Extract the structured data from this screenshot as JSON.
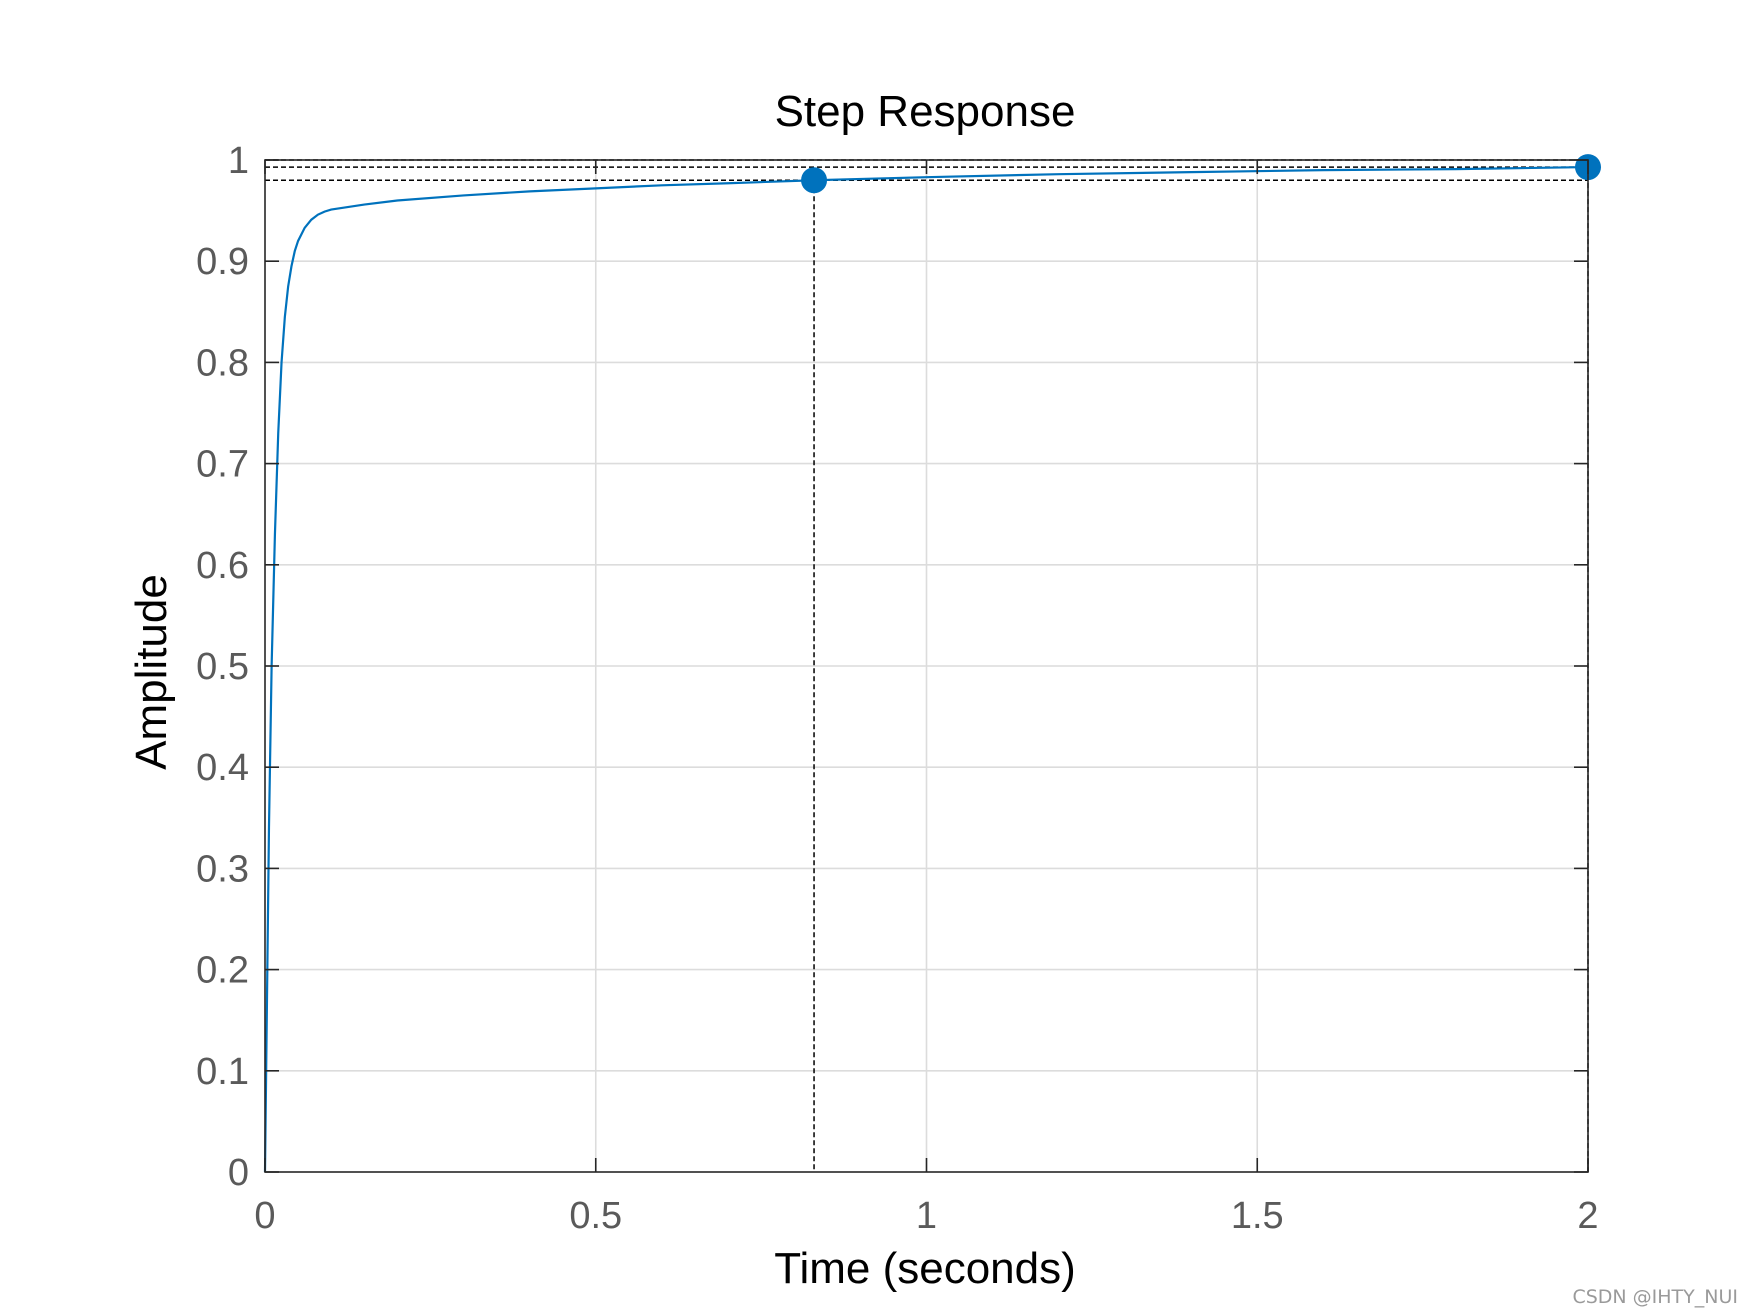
{
  "chart_data": {
    "type": "line",
    "title": "Step Response",
    "xlabel": "Time (seconds)",
    "ylabel": "Amplitude",
    "xlim": [
      0,
      2
    ],
    "ylim": [
      0,
      1
    ],
    "x_ticks": [
      0,
      0.5,
      1,
      1.5,
      2
    ],
    "x_tick_labels": [
      "0",
      "0.5",
      "1",
      "1.5",
      "2"
    ],
    "y_ticks": [
      0,
      0.1,
      0.2,
      0.3,
      0.4,
      0.5,
      0.6,
      0.7,
      0.8,
      0.9,
      1
    ],
    "y_tick_labels": [
      "0",
      "0.1",
      "0.2",
      "0.3",
      "0.4",
      "0.5",
      "0.6",
      "0.7",
      "0.8",
      "0.9",
      "1"
    ],
    "grid": true,
    "line_color": "#0072BD",
    "series": [
      {
        "x": [
          0,
          0.003,
          0.006,
          0.01,
          0.015,
          0.02,
          0.025,
          0.03,
          0.035,
          0.04,
          0.045,
          0.05,
          0.06,
          0.07,
          0.08,
          0.09,
          0.1,
          0.12,
          0.15,
          0.2,
          0.3,
          0.4,
          0.5,
          0.6,
          0.7,
          0.83,
          1.0,
          1.2,
          1.4,
          1.6,
          1.8,
          2.0
        ],
        "y": [
          0,
          0.17,
          0.34,
          0.5,
          0.63,
          0.73,
          0.8,
          0.845,
          0.875,
          0.895,
          0.91,
          0.92,
          0.933,
          0.941,
          0.946,
          0.949,
          0.951,
          0.953,
          0.956,
          0.96,
          0.965,
          0.969,
          0.972,
          0.975,
          0.977,
          0.98,
          0.983,
          0.986,
          0.988,
          0.99,
          0.991,
          0.993
        ]
      }
    ],
    "markers": [
      {
        "x": 0.83,
        "y": 0.98
      },
      {
        "x": 2.0,
        "y": 0.993
      }
    ],
    "guide_lines": {
      "horizontal": [
        1.0,
        0.993,
        0.98
      ],
      "vertical": [
        0.83,
        2.0
      ]
    }
  },
  "watermark": "CSDN @IHTY_NUI"
}
